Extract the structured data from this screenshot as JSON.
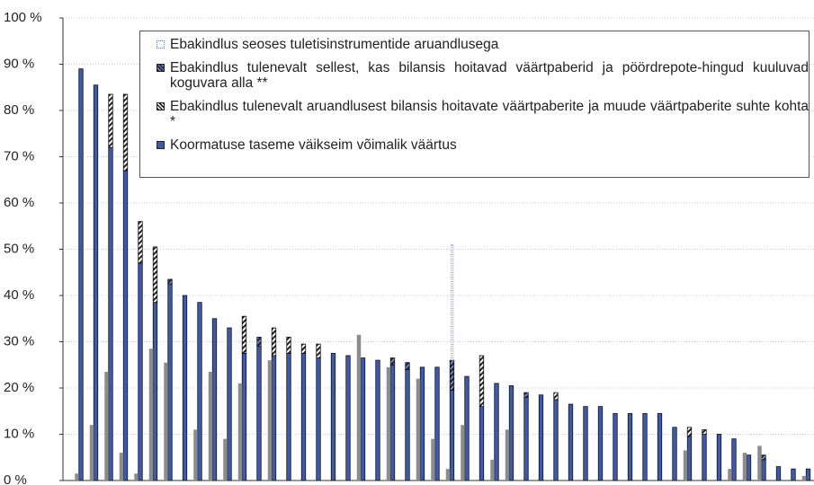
{
  "chart_data": {
    "type": "stacked-bar",
    "categories": [
      null,
      null,
      null,
      null,
      null,
      null,
      null,
      null,
      null,
      null,
      null,
      null,
      null,
      null,
      null,
      null,
      null,
      null,
      null,
      null,
      null,
      null,
      null,
      null,
      null,
      null,
      null,
      null,
      null,
      null,
      null,
      null,
      null,
      null,
      null,
      null,
      null,
      null,
      null,
      null,
      null,
      null,
      null,
      null,
      null,
      null,
      null,
      null,
      null,
      null
    ],
    "ylim": [
      0,
      100
    ],
    "yticks": [
      {
        "value": 0,
        "label": "0 %"
      },
      {
        "value": 10,
        "label": "10 %"
      },
      {
        "value": 20,
        "label": "20 %"
      },
      {
        "value": 30,
        "label": "30 %"
      },
      {
        "value": 40,
        "label": "40 %"
      },
      {
        "value": 50,
        "label": "50 %"
      },
      {
        "value": 60,
        "label": "60 %"
      },
      {
        "value": 70,
        "label": "70 %"
      },
      {
        "value": 80,
        "label": "80 %"
      },
      {
        "value": 90,
        "label": "90 %"
      },
      {
        "value": 100,
        "label": "100 %"
      }
    ],
    "grid": true,
    "legend_order": [
      3,
      2,
      1,
      0
    ],
    "series": [
      {
        "name": "Koormatuse taseme väikseim võimalik väärtus",
        "color": "#3f5aa8",
        "style": "solid",
        "stack": "main",
        "values": [
          89,
          85.5,
          72,
          67,
          47,
          38.5,
          42.5,
          40,
          38.5,
          35,
          33,
          27.5,
          29,
          27,
          27.5,
          27.5,
          26.5,
          27.5,
          27,
          26.5,
          26,
          25,
          24,
          24.5,
          24.5,
          19.5,
          22.5,
          16,
          21,
          20.5,
          18,
          18.5,
          17.5,
          16.5,
          16,
          16,
          14.5,
          14.5,
          14.5,
          14.5,
          11.5,
          9.5,
          10,
          10,
          9,
          5.5,
          4.5,
          3,
          2.5,
          2.5
        ]
      },
      {
        "name": "Ebakindlus tulenevalt aruandlusest bilansis hoitavate väärtpaberite ja muude väärtpaberite suhte kohta *",
        "color": "#222222",
        "style": "hatch-light",
        "stack": "main",
        "values": [
          null,
          null,
          11.5,
          16.5,
          9,
          12,
          null,
          null,
          null,
          null,
          null,
          8,
          null,
          6,
          3.5,
          2,
          3,
          null,
          null,
          null,
          null,
          null,
          null,
          null,
          null,
          null,
          null,
          11,
          null,
          null,
          null,
          null,
          1.5,
          null,
          null,
          null,
          null,
          null,
          null,
          null,
          null,
          2,
          1,
          null,
          null,
          null,
          null,
          null,
          null,
          null
        ]
      },
      {
        "name": "Ebakindlus tulenevalt sellest, kas bilansis hoitavad väärtpaberid ja pöördrepote-hingud kuuluvad koguvara alla **",
        "color": "#1c2a60",
        "style": "hatch-dark",
        "stack": "main",
        "values": [
          null,
          null,
          null,
          null,
          null,
          null,
          1,
          null,
          null,
          null,
          null,
          null,
          2,
          null,
          null,
          null,
          null,
          null,
          null,
          null,
          null,
          1.5,
          1.5,
          null,
          null,
          6.5,
          null,
          null,
          null,
          null,
          1,
          null,
          null,
          null,
          null,
          null,
          null,
          null,
          null,
          null,
          null,
          null,
          null,
          null,
          null,
          null,
          1,
          null,
          null,
          null
        ]
      },
      {
        "name": "Ebakindlus seoses tuletisinstrumentide aruandlusega",
        "color": "#5a78c8",
        "style": "dotted",
        "stack": "main",
        "values": [
          null,
          null,
          null,
          null,
          null,
          null,
          null,
          null,
          null,
          null,
          null,
          null,
          null,
          null,
          null,
          null,
          null,
          null,
          null,
          null,
          null,
          null,
          null,
          null,
          null,
          25,
          null,
          null,
          null,
          null,
          null,
          null,
          null,
          null,
          null,
          null,
          null,
          null,
          null,
          null,
          null,
          null,
          null,
          null,
          null,
          null,
          null,
          null,
          null,
          null
        ]
      },
      {
        "color": "#8c8c8c",
        "style": "solid",
        "stack": "side",
        "values": [
          1.5,
          12,
          23.5,
          6,
          1.5,
          28.5,
          25.5,
          null,
          11,
          23.5,
          9,
          21,
          null,
          26,
          null,
          null,
          null,
          null,
          null,
          31.5,
          null,
          24.5,
          null,
          22,
          9,
          2.5,
          12,
          null,
          4.5,
          11,
          null,
          null,
          null,
          null,
          null,
          null,
          null,
          null,
          null,
          null,
          null,
          6.5,
          null,
          null,
          2.5,
          6,
          7.5,
          null,
          null,
          1
        ]
      }
    ]
  }
}
